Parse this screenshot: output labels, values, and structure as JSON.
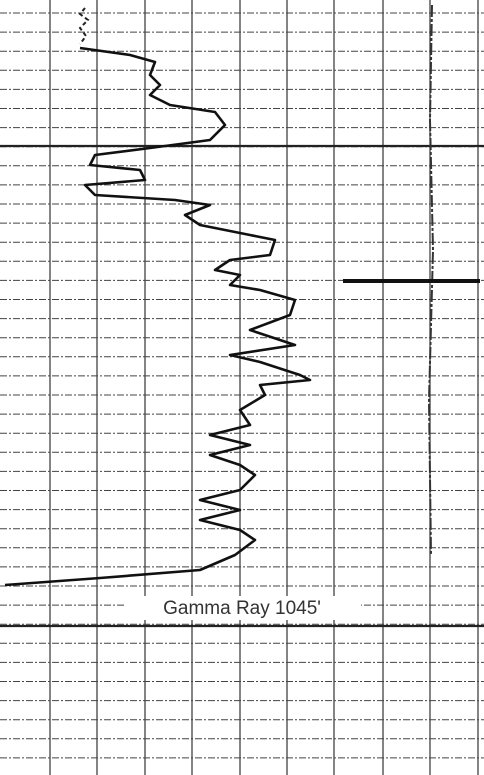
{
  "label": "Gamma Ray 1045'"
}
